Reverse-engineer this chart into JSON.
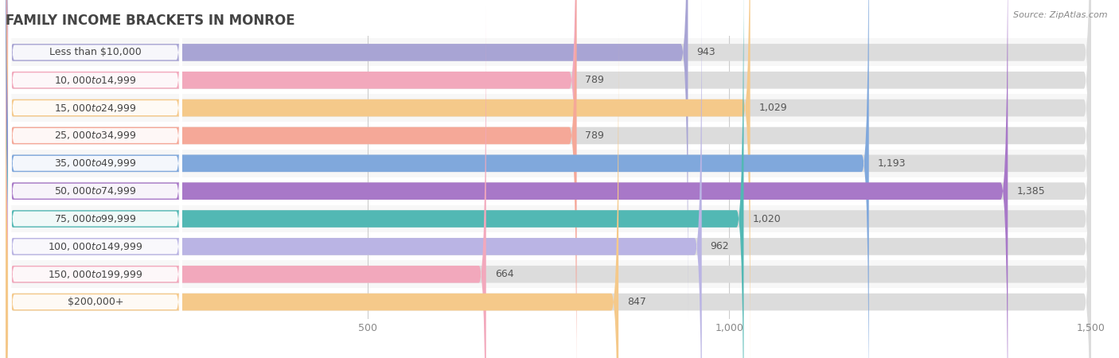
{
  "title": "FAMILY INCOME BRACKETS IN MONROE",
  "source": "Source: ZipAtlas.com",
  "categories": [
    "Less than $10,000",
    "$10,000 to $14,999",
    "$15,000 to $24,999",
    "$25,000 to $34,999",
    "$35,000 to $49,999",
    "$50,000 to $74,999",
    "$75,000 to $99,999",
    "$100,000 to $149,999",
    "$150,000 to $199,999",
    "$200,000+"
  ],
  "values": [
    943,
    789,
    1029,
    789,
    1193,
    1385,
    1020,
    962,
    664,
    847
  ],
  "bar_colors": [
    "#a8a4d4",
    "#f2a8bc",
    "#f5c98a",
    "#f5a898",
    "#80a8dc",
    "#a878c8",
    "#52b8b4",
    "#bab4e4",
    "#f2a8bc",
    "#f5c98a"
  ],
  "xlim": [
    0,
    1500
  ],
  "xticks": [
    500,
    1000,
    1500
  ],
  "bg_color": "#ffffff",
  "bar_bg_color": "#e8e8e8",
  "row_bg_odd": "#f7f7f7",
  "row_bg_even": "#ffffff",
  "title_color": "#444444",
  "label_color": "#444444",
  "value_color": "#555555",
  "bar_height": 0.62,
  "label_pill_color": "#ffffff"
}
